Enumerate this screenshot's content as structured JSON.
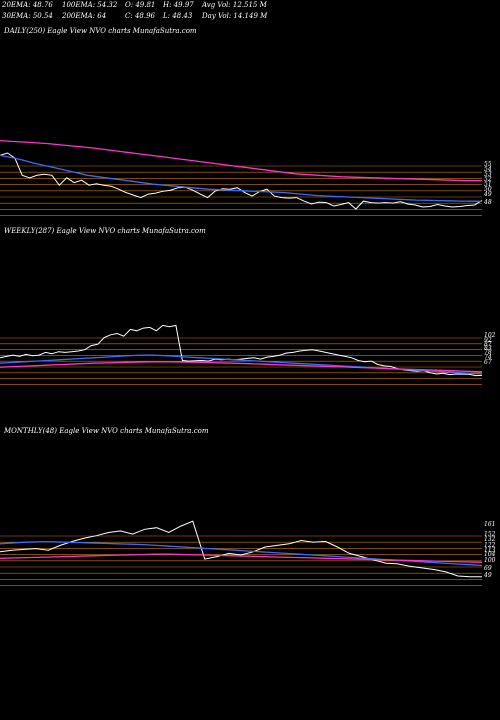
{
  "stats": {
    "row1": [
      "20EMA: 48.76",
      "100EMA: 54.32",
      "O: 49.81",
      "H: 49.97",
      "Avg Vol: 12.515 M"
    ],
    "row2": [
      "30EMA: 50.54",
      "200EMA: 64",
      "C: 48.96",
      "L: 48.43",
      "Day Vol: 14.149 M"
    ]
  },
  "colors": {
    "background": "#000000",
    "price": "#ffffff",
    "ema_short": "#3a6bff",
    "ema_long": "#ff33cc",
    "levels": "#cc7a00",
    "ema_other": "#c8a070"
  },
  "chart_data": [
    {
      "type": "line",
      "title": "DAILY(250) Eagle   View  NVO charts MunafaSutra.com",
      "y_tick_labels": [
        "55",
        "54",
        "53",
        "52",
        "51",
        "50",
        "49",
        "48"
      ],
      "series": [
        {
          "values": [
            58,
            58.5,
            57.5,
            54,
            53.5,
            54,
            54.2,
            54,
            52,
            53.5,
            52.5,
            53,
            52,
            52.3,
            52,
            51.8,
            51.2,
            50.5,
            50,
            49.5,
            50.2,
            50.4,
            50.8,
            51,
            51.5,
            51.6,
            51,
            50.2,
            49.5,
            50.8,
            51.3,
            51.2,
            51.5,
            50.5,
            49.8,
            50.7,
            51.2,
            49.8,
            49.5,
            49.4,
            49.5,
            48.8,
            48.2,
            48.6,
            48.5,
            47.8,
            48.1,
            48.5,
            47.2,
            48.8,
            48.5,
            48.4,
            48.5,
            48.4,
            48.7,
            48.2,
            48,
            47.6,
            47.7,
            48.1,
            47.8,
            47.6,
            47.7,
            47.9,
            48,
            48.96
          ]
        },
        {
          "values": [
            58,
            57.6,
            57.1,
            56.5,
            56,
            55.5,
            55,
            54.5,
            54,
            53.7,
            53.4,
            53.1,
            52.8,
            52.5,
            52.2,
            52,
            51.8,
            51.6,
            51.4,
            51.2,
            51.1,
            51,
            50.9,
            50.8,
            50.7,
            50.6,
            50.5,
            50.3,
            50.1,
            49.9,
            49.8,
            49.7,
            49.6,
            49.5,
            49.4,
            49.3,
            49.2,
            49.1,
            49,
            48.95,
            48.9,
            48.85,
            48.8,
            48.78,
            48.76
          ]
        },
        {
          "values": [
            61,
            60.8,
            60.6,
            60.4,
            60.1,
            59.8,
            59.5,
            59.1,
            58.7,
            58.3,
            57.9,
            57.5,
            57.1,
            56.7,
            56.3,
            55.9,
            55.5,
            55.1,
            54.7,
            54.3,
            54.1,
            53.9,
            53.7,
            53.6,
            53.5,
            53.4,
            53.3,
            53.2,
            53.1,
            53,
            52.9,
            52.9
          ]
        }
      ]
    },
    {
      "type": "line",
      "title": "WEEKLY(287) Eagle   View  NVO charts MunafaSutra.com",
      "y_tick_labels": [
        "102",
        "92",
        "87",
        "83",
        "78",
        "74",
        "67"
      ],
      "series": [
        {
          "values": [
            62,
            63,
            64,
            63,
            64.5,
            63.5,
            64,
            66,
            65,
            66.5,
            66,
            66.5,
            67,
            68,
            71,
            72,
            77,
            79,
            80,
            78,
            83,
            82,
            84,
            84.5,
            82,
            86,
            85,
            86,
            60,
            59.5,
            59.8,
            60,
            59.5,
            61,
            60.5,
            61,
            60.5,
            61,
            61.5,
            62,
            61,
            62.5,
            63,
            64,
            65.5,
            66,
            67,
            67.5,
            68,
            67,
            66,
            65,
            64,
            63,
            62,
            60,
            59,
            59.5,
            57,
            56,
            55.5,
            54,
            53,
            52.5,
            52,
            52.5,
            51,
            50,
            50.5,
            49.5,
            50,
            49.9,
            49.8,
            48.8,
            48.96
          ]
        },
        {
          "values": [
            58,
            58.5,
            59,
            59.5,
            60,
            60.5,
            61,
            61.5,
            62,
            62.5,
            63,
            63.5,
            64,
            64,
            63.5,
            63,
            62.5,
            62,
            61.5,
            61,
            60.5,
            60,
            59.5,
            59,
            58.5,
            58,
            57.5,
            57,
            56.5,
            56,
            55.5,
            55,
            54.5,
            54,
            53.5,
            53,
            52.5,
            52,
            51.5,
            51,
            50.5,
            50
          ]
        },
        {
          "values": [
            55,
            55.5,
            56,
            56.5,
            57,
            57.5,
            58,
            58.3,
            58.6,
            58.8,
            59,
            59,
            58.8,
            58.6,
            58.3,
            58,
            57.6,
            57.2,
            56.8,
            56.4,
            56,
            55.6,
            55.2,
            54.8,
            54.4,
            54,
            53.6,
            53.2,
            52.8,
            52.4,
            52,
            51.6
          ]
        }
      ]
    },
    {
      "type": "line",
      "title": "MONTHLY(48) Eagle   View  NVO charts MunafaSutra.com",
      "y_tick_labels": [
        "161",
        "152",
        "132",
        "122",
        "113",
        "104",
        "100",
        "69",
        "49"
      ],
      "series": [
        {
          "values": [
            80,
            82,
            83,
            84,
            82,
            88,
            93,
            97,
            100,
            104,
            106,
            102,
            108,
            110,
            104,
            112,
            118,
            71,
            74,
            78,
            76,
            80,
            86,
            88,
            90,
            94,
            92,
            93,
            86,
            78,
            74,
            70,
            66,
            65,
            62,
            60,
            58,
            55,
            50,
            49,
            48.96
          ]
        },
        {
          "values": [
            90,
            91,
            92,
            92.5,
            92.5,
            92,
            91.5,
            91,
            90.5,
            90,
            89.5,
            89,
            88,
            87,
            86,
            85,
            84,
            83,
            82,
            81,
            80,
            79,
            78,
            77,
            76,
            75,
            74,
            73,
            72,
            71,
            70,
            69,
            68,
            67,
            66,
            65,
            64,
            63
          ]
        },
        {
          "values": [
            72,
            72.5,
            73,
            73.5,
            74,
            74.5,
            75,
            75.5,
            76,
            76.5,
            77,
            77,
            76.5,
            76,
            75.5,
            75,
            74.5,
            74,
            73.5,
            73,
            72.5,
            72,
            71.5,
            71,
            70.5,
            70,
            69.5,
            69,
            68.5,
            68,
            67.5,
            67
          ]
        }
      ]
    }
  ]
}
